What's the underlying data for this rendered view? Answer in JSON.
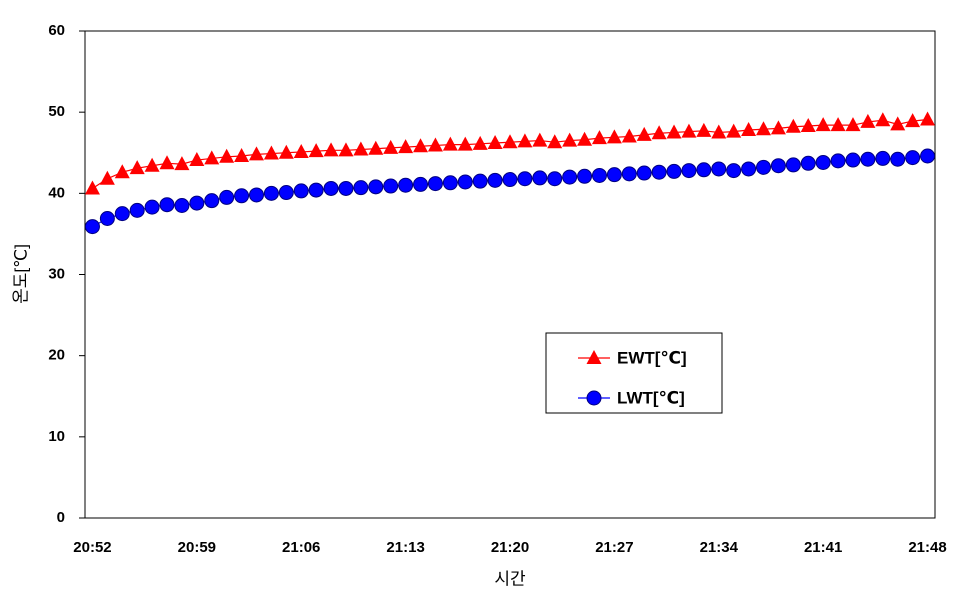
{
  "chart_data": {
    "type": "line",
    "x_label": "시간",
    "y_label": "온도[℃]",
    "categories": [
      "20:52",
      null,
      null,
      null,
      null,
      null,
      null,
      "20:59",
      null,
      null,
      null,
      null,
      null,
      null,
      "21:06",
      null,
      null,
      null,
      null,
      null,
      null,
      "21:13",
      null,
      null,
      null,
      null,
      null,
      null,
      "21:20",
      null,
      null,
      null,
      null,
      null,
      null,
      "21:27",
      null,
      null,
      null,
      null,
      null,
      null,
      "21:34",
      null,
      null,
      null,
      null,
      null,
      null,
      "21:41",
      null,
      null,
      null,
      null,
      null,
      null,
      "21:48"
    ],
    "series": [
      {
        "name": "EWT[℃]",
        "color": "#ff0000",
        "marker": "triangle",
        "values": [
          40.6,
          41.8,
          42.6,
          43.1,
          43.4,
          43.7,
          43.6,
          44.1,
          44.3,
          44.5,
          44.6,
          44.8,
          44.9,
          45.0,
          45.1,
          45.2,
          45.3,
          45.3,
          45.4,
          45.5,
          45.6,
          45.7,
          45.8,
          45.9,
          46.0,
          46.0,
          46.1,
          46.2,
          46.3,
          46.4,
          46.5,
          46.3,
          46.5,
          46.6,
          46.8,
          46.9,
          47.0,
          47.2,
          47.4,
          47.5,
          47.6,
          47.7,
          47.5,
          47.6,
          47.8,
          47.9,
          48.0,
          48.2,
          48.3,
          48.4,
          48.4,
          48.4,
          48.8,
          49.0,
          48.5,
          48.9,
          49.1
        ]
      },
      {
        "name": "LWT[℃]",
        "color": "#0000ff",
        "marker": "circle",
        "values": [
          35.9,
          36.9,
          37.5,
          37.9,
          38.3,
          38.6,
          38.5,
          38.8,
          39.1,
          39.5,
          39.7,
          39.8,
          40.0,
          40.1,
          40.3,
          40.4,
          40.6,
          40.6,
          40.7,
          40.8,
          40.9,
          41.0,
          41.1,
          41.2,
          41.3,
          41.4,
          41.5,
          41.6,
          41.7,
          41.8,
          41.9,
          41.8,
          42.0,
          42.1,
          42.2,
          42.3,
          42.4,
          42.5,
          42.6,
          42.7,
          42.8,
          42.9,
          43.0,
          42.8,
          43.0,
          43.2,
          43.4,
          43.5,
          43.7,
          43.8,
          44.0,
          44.1,
          44.2,
          44.3,
          44.2,
          44.4,
          44.6
        ]
      }
    ],
    "ylim": [
      0,
      60
    ],
    "yticks": [
      0,
      10,
      20,
      30,
      40,
      50,
      60
    ],
    "grid": false
  }
}
